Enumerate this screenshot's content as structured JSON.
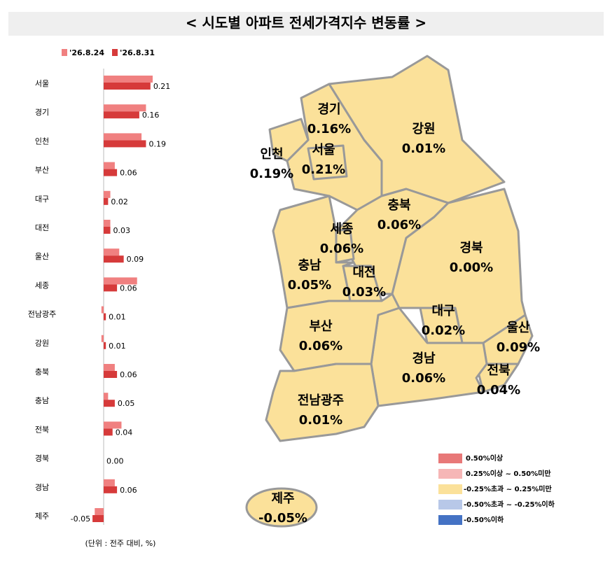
{
  "chart_data": [
    {
      "type": "hbar",
      "title": "< 시도별 아파트 전세가격지수 변동률 >",
      "note": "(단위 : 전주 대비, %)",
      "categories": [
        "서울",
        "경기",
        "인천",
        "부산",
        "대구",
        "대전",
        "울산",
        "세종",
        "전남광주",
        "강원",
        "충북",
        "충남",
        "전북",
        "경북",
        "경남",
        "제주"
      ],
      "series": [
        {
          "name": "'26.8.24",
          "color": "#f08080",
          "values": [
            0.22,
            0.19,
            0.17,
            0.05,
            0.03,
            0.03,
            0.07,
            0.15,
            -0.01,
            -0.01,
            0.05,
            0.02,
            0.08,
            0,
            0.05,
            -0.04
          ]
        },
        {
          "name": "'26.8.31",
          "color": "#d63a3a",
          "values": [
            0.21,
            0.16,
            0.19,
            0.06,
            0.02,
            0.03,
            0.09,
            0.06,
            0.01,
            0.01,
            0.06,
            0.05,
            0.04,
            0,
            0.06,
            -0.05
          ],
          "value_labels": [
            "0.21",
            "0.16",
            "0.19",
            "0.06",
            "0.02",
            "0.03",
            "0.09",
            "0.06",
            "0.01",
            "0.01",
            "0.06",
            "0.05",
            "0.04",
            "0.00",
            "0.06",
            "-0.05"
          ]
        }
      ]
    },
    {
      "type": "map",
      "color": "#fbe19a",
      "regions": [
        {
          "name": "경기",
          "value": 0.16,
          "value_label": "0.16%"
        },
        {
          "name": "강원",
          "value": 0.01,
          "value_label": "0.01%"
        },
        {
          "name": "인천",
          "value": 0.19,
          "value_label": "0.19%"
        },
        {
          "name": "서울",
          "value": 0.21,
          "value_label": "0.21%"
        },
        {
          "name": "충북",
          "value": 0.06,
          "value_label": "0.06%"
        },
        {
          "name": "세종",
          "value": 0.06,
          "value_label": "0.06%"
        },
        {
          "name": "경북",
          "value": 0,
          "value_label": "0.00%"
        },
        {
          "name": "충남",
          "value": 0.05,
          "value_label": "0.05%"
        },
        {
          "name": "대전",
          "value": 0.03,
          "value_label": "0.03%"
        },
        {
          "name": "대구",
          "value": 0.02,
          "value_label": "0.02%"
        },
        {
          "name": "울산",
          "value": 0.09,
          "value_label": "0.09%"
        },
        {
          "name": "전북",
          "value": 0.04,
          "value_label": "0.04%"
        },
        {
          "name": "경남",
          "value": 0.06,
          "value_label": "0.06%"
        },
        {
          "name": "부산",
          "value": 0.06,
          "value_label": "0.06%"
        },
        {
          "name": "전남광주",
          "value": 0.01,
          "value_label": "0.01%"
        },
        {
          "name": "제주",
          "value": -0.05,
          "value_label": "-0.05%"
        }
      ],
      "legend": [
        {
          "label": "0.50%이상",
          "color": "#e87878"
        },
        {
          "label": "0.25%이상 ~ 0.50%미만",
          "color": "#f6b6b6"
        },
        {
          "label": "-0.25%초과 ~ 0.25%미만",
          "color": "#fbe19a"
        },
        {
          "label": "-0.50%초과 ~ -0.25%이하",
          "color": "#b8c8e8"
        },
        {
          "label": "-0.50%이하",
          "color": "#4472c4"
        }
      ]
    }
  ]
}
